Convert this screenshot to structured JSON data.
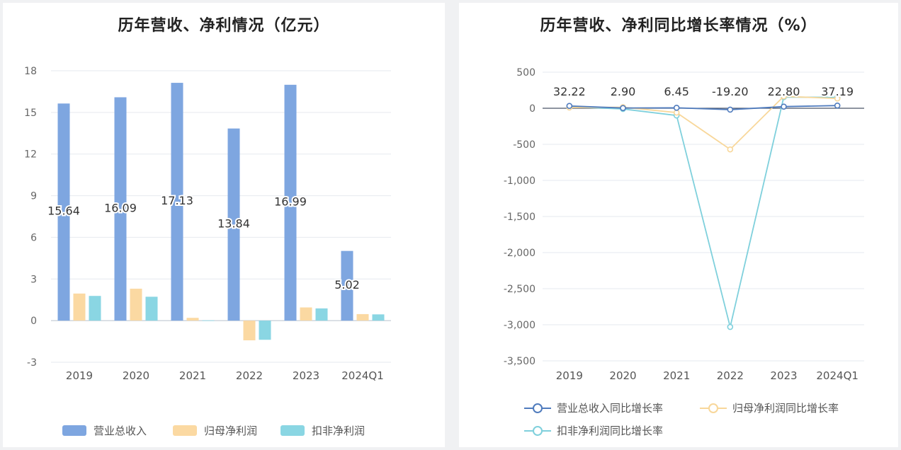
{
  "chart_data": [
    {
      "type": "bar",
      "title": "历年营收、净利情况（亿元）",
      "categories": [
        "2019",
        "2020",
        "2021",
        "2022",
        "2023",
        "2024Q1"
      ],
      "ylim": [
        -3,
        18
      ],
      "yticks": [
        -3,
        0,
        3,
        6,
        9,
        12,
        15,
        18
      ],
      "grid": true,
      "legend_position": "bottom",
      "series": [
        {
          "name": "营业总收入",
          "color": "#7ea6e0",
          "values": [
            15.64,
            16.09,
            17.13,
            13.84,
            16.99,
            5.02
          ]
        },
        {
          "name": "归母净利润",
          "color": "#fbd9a2",
          "values": [
            1.95,
            2.3,
            0.2,
            -1.42,
            0.95,
            0.47
          ]
        },
        {
          "name": "扣非净利润",
          "color": "#8ad6e3",
          "values": [
            1.78,
            1.72,
            0.02,
            -1.38,
            0.88,
            0.45
          ]
        }
      ],
      "data_labels": [
        "15.64",
        "16.09",
        "17.13",
        "13.84",
        "16.99",
        "5.02"
      ]
    },
    {
      "type": "line",
      "title": "历年营收、净利同比增长率情况（%）",
      "categories": [
        "2019",
        "2020",
        "2021",
        "2022",
        "2023",
        "2024Q1"
      ],
      "ylim": [
        -3500,
        500
      ],
      "yticks": [
        500,
        0,
        -500,
        -1000,
        -1500,
        -2000,
        -2500,
        -3000,
        -3500
      ],
      "ytick_labels": [
        "500",
        "0",
        "-500",
        "-1,000",
        "-1,500",
        "-2,000",
        "-2,500",
        "-3,000",
        "-3,500"
      ],
      "grid": true,
      "legend_position": "bottom",
      "series": [
        {
          "name": "营业总收入同比增长率",
          "color": "#4f7bbd",
          "values": [
            32.22,
            2.9,
            6.45,
            -19.2,
            22.8,
            37.19
          ]
        },
        {
          "name": "归母净利润同比增长率",
          "color": "#f8d79a",
          "values": [
            10,
            15,
            -60,
            -570,
            165,
            135
          ]
        },
        {
          "name": "扣非净利润同比增长率",
          "color": "#7fd0dc",
          "values": [
            20,
            -10,
            -100,
            -3030,
            155,
            150
          ]
        }
      ],
      "data_labels": [
        "32.22",
        "2.90",
        "6.45",
        "-19.20",
        "22.80",
        "37.19"
      ]
    }
  ]
}
